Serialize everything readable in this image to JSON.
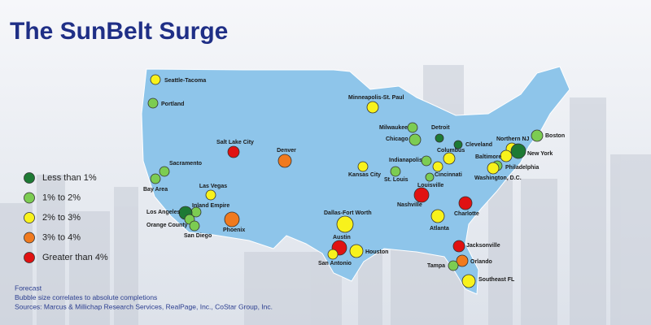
{
  "title": "The SunBelt Surge",
  "legend": [
    {
      "label": "Less than 1%",
      "color": "#1e7a34"
    },
    {
      "label": "1% to 2%",
      "color": "#7ccc52"
    },
    {
      "label": "2% to 3%",
      "color": "#f8f21c"
    },
    {
      "label": "3% to 4%",
      "color": "#f07a1e"
    },
    {
      "label": "Greater than 4%",
      "color": "#e01212"
    }
  ],
  "cities": [
    {
      "name": "Seattle-Tacoma",
      "category": 2
    },
    {
      "name": "Portland",
      "category": 1
    },
    {
      "name": "Salt Lake City",
      "category": 4
    },
    {
      "name": "Denver",
      "category": 3
    },
    {
      "name": "Sacramento",
      "category": 1
    },
    {
      "name": "Bay Area",
      "category": 1
    },
    {
      "name": "Las Vegas",
      "category": 2
    },
    {
      "name": "Inland Empire",
      "category": 1
    },
    {
      "name": "Los Angeles",
      "category": 0
    },
    {
      "name": "Orange County",
      "category": 1
    },
    {
      "name": "San Diego",
      "category": 1
    },
    {
      "name": "Phoenix",
      "category": 3
    },
    {
      "name": "Minneapolis-St. Paul",
      "category": 2
    },
    {
      "name": "Milwaukee",
      "category": 1
    },
    {
      "name": "Detroit",
      "category": 0
    },
    {
      "name": "Chicago",
      "category": 1
    },
    {
      "name": "Cleveland",
      "category": 0
    },
    {
      "name": "Columbus",
      "category": 2
    },
    {
      "name": "Indianapolis",
      "category": 1
    },
    {
      "name": "Cincinnati",
      "category": 2
    },
    {
      "name": "Kansas City",
      "category": 2
    },
    {
      "name": "St. Louis",
      "category": 1
    },
    {
      "name": "Louisville",
      "category": 1
    },
    {
      "name": "Nashville",
      "category": 4
    },
    {
      "name": "Charlotte",
      "category": 4
    },
    {
      "name": "Atlanta",
      "category": 2
    },
    {
      "name": "Dallas-Fort Worth",
      "category": 2
    },
    {
      "name": "Austin",
      "category": 4
    },
    {
      "name": "San Antonio",
      "category": 2
    },
    {
      "name": "Houston",
      "category": 2
    },
    {
      "name": "Jacksonville",
      "category": 4
    },
    {
      "name": "Orlando",
      "category": 3
    },
    {
      "name": "Tampa",
      "category": 1
    },
    {
      "name": "Southeast FL",
      "category": 2
    },
    {
      "name": "Boston",
      "category": 1
    },
    {
      "name": "Northern NJ",
      "category": 2
    },
    {
      "name": "New York",
      "category": 0
    },
    {
      "name": "Baltimore",
      "category": 2
    },
    {
      "name": "Philadelphia",
      "category": 1
    },
    {
      "name": "Washington, D.C.",
      "category": 2
    }
  ],
  "notes": [
    "Forecast",
    "Bubble size correlates to absolute completions",
    "Sources: Marcus & Millichap Research Services, RealPage, Inc., CoStar Group, Inc."
  ]
}
